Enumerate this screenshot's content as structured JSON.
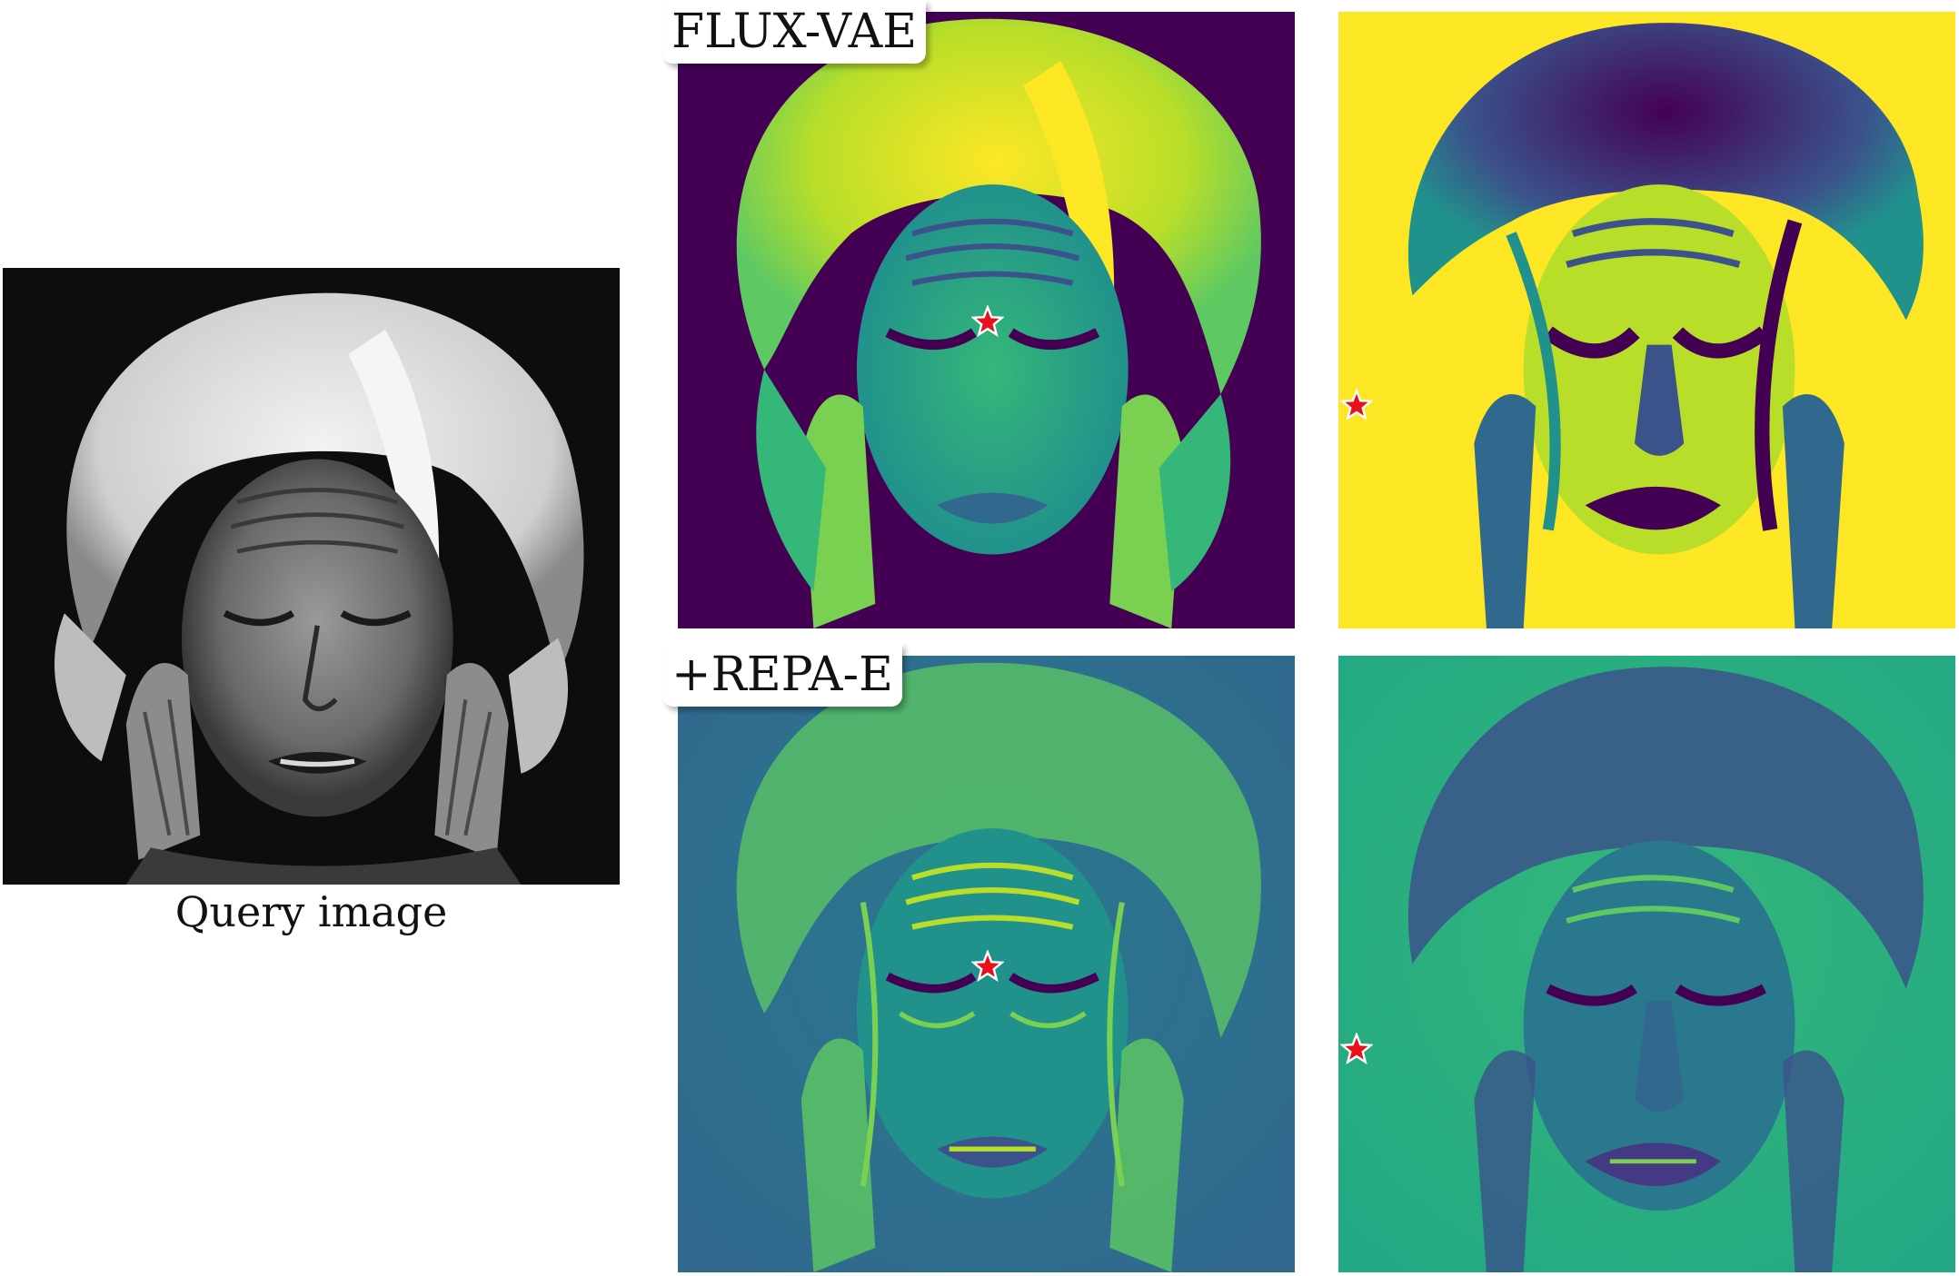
{
  "figure": {
    "query_caption": "Query image",
    "rows": [
      {
        "label": "FLUX-VAE",
        "panels": [
          {
            "colormap": "viridis",
            "background_level": 0.02,
            "face_polarity": "bright"
          },
          {
            "colormap": "viridis",
            "background_level": 0.98,
            "face_polarity": "dark"
          }
        ]
      },
      {
        "label": "+REPA-E",
        "panels": [
          {
            "colormap": "viridis",
            "background_level": 0.32,
            "face_polarity": "mixed"
          },
          {
            "colormap": "viridis",
            "background_level": 0.55,
            "face_polarity": "mixed"
          }
        ]
      }
    ],
    "marker": {
      "symbol": "star",
      "fill": "#e8101c",
      "stroke": "#ffffff"
    },
    "colors": {
      "viridis_dark": "#440154",
      "viridis_blue": "#31688e",
      "viridis_green": "#35b779",
      "viridis_yellow": "#fde725",
      "query_background": "#0d0d0d",
      "query_hair": "#e6e6e6"
    }
  }
}
